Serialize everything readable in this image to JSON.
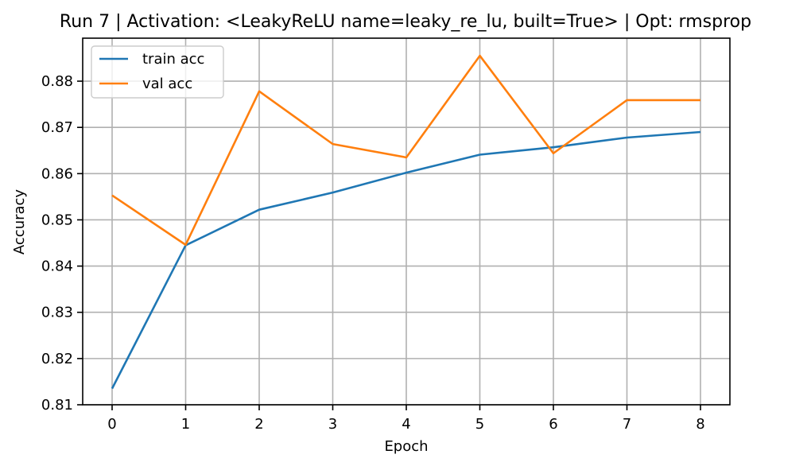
{
  "chart_data": {
    "type": "line",
    "title": "Run 7 | Activation: <LeakyReLU name=leaky_re_lu, built=True> | Opt: rmsprop",
    "xlabel": "Epoch",
    "ylabel": "Accuracy",
    "x": [
      0,
      1,
      2,
      3,
      4,
      5,
      6,
      7,
      8
    ],
    "xlim": [
      -0.4,
      8.4
    ],
    "ylim": [
      0.81,
      0.8893
    ],
    "xticks": [
      "0",
      "1",
      "2",
      "3",
      "4",
      "5",
      "6",
      "7",
      "8"
    ],
    "yticks": [
      0.81,
      0.82,
      0.83,
      0.84,
      0.85,
      0.86,
      0.87,
      0.88
    ],
    "ytick_labels": [
      "0.81",
      "0.82",
      "0.83",
      "0.84",
      "0.85",
      "0.86",
      "0.87",
      "0.88"
    ],
    "grid": true,
    "legend_position": "top-left",
    "series": [
      {
        "name": "train acc",
        "color": "#1f77b4",
        "values": [
          0.8135,
          0.8445,
          0.8522,
          0.8559,
          0.8602,
          0.8641,
          0.8657,
          0.8678,
          0.869
        ]
      },
      {
        "name": "val acc",
        "color": "#ff7f0e",
        "values": [
          0.8553,
          0.8446,
          0.8778,
          0.8664,
          0.8635,
          0.8855,
          0.8644,
          0.8759,
          0.8759
        ]
      }
    ]
  }
}
